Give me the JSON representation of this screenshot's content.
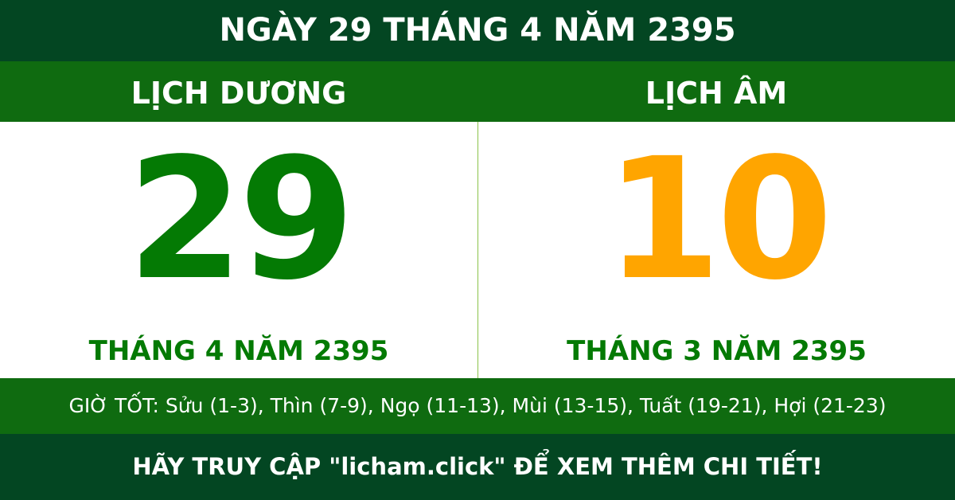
{
  "title": "NGÀY 29 THÁNG 4 NĂM 2395",
  "solar": {
    "label": "LỊCH DƯƠNG",
    "day": "29",
    "month_year": "THÁNG 4 NĂM 2395",
    "color": "#047a04"
  },
  "lunar": {
    "label": "LỊCH ÂM",
    "day": "10",
    "month_year": "THÁNG 3 NĂM 2395",
    "color": "#ffa500"
  },
  "good_hours": "GIỜ TỐT: Sửu (1-3), Thìn (7-9), Ngọ (11-13), Mùi (13-15), Tuất (19-21), Hợi (21-23)",
  "footer": "HÃY TRUY CẬP \"licham.click\" ĐỂ XEM THÊM CHI TIẾT!"
}
